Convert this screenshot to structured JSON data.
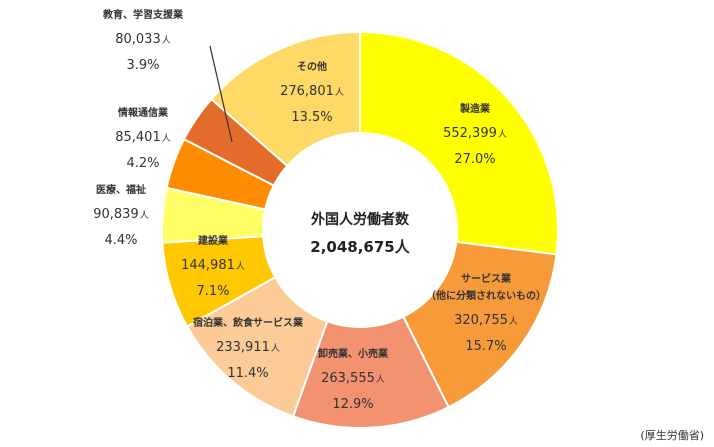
{
  "chart_data": {
    "type": "pie",
    "variant": "donut",
    "title": "",
    "center_title": "外国人労働者数",
    "center_total": "2,048,675人",
    "unit": "人",
    "segments": [
      {
        "name": "製造業",
        "name_line2": "",
        "value": 552399,
        "value_text": "552,399",
        "percent": "27.0%",
        "color": "#FFFF00"
      },
      {
        "name": "サービス業",
        "name_line2": "（他に分類されないもの）",
        "value": 320755,
        "value_text": "320,755",
        "percent": "15.7%",
        "color": "#F79A3A"
      },
      {
        "name": "卸売業、小売業",
        "name_line2": "",
        "value": 263555,
        "value_text": "263,555",
        "percent": "12.9%",
        "color": "#F39270"
      },
      {
        "name": "宿泊業、飲食サービス業",
        "name_line2": "",
        "value": 233911,
        "value_text": "233,911",
        "percent": "11.4%",
        "color": "#FCCB97"
      },
      {
        "name": "建設業",
        "name_line2": "",
        "value": 144981,
        "value_text": "144,981",
        "percent": "7.1%",
        "color": "#FFC800"
      },
      {
        "name": "医療、福祉",
        "name_line2": "",
        "value": 90839,
        "value_text": "90,839",
        "percent": "4.4%",
        "color": "#FFFF66"
      },
      {
        "name": "情報通信業",
        "name_line2": "",
        "value": 85401,
        "value_text": "85,401",
        "percent": "4.2%",
        "color": "#FF8C00"
      },
      {
        "name": "教育、学習支援業",
        "name_line2": "",
        "value": 80033,
        "value_text": "80,033",
        "percent": "3.9%",
        "color": "#E36C2A"
      },
      {
        "name": "その他",
        "name_line2": "",
        "value": 276801,
        "value_text": "276,801",
        "percent": "13.5%",
        "color": "#FFD966"
      }
    ],
    "legend": "none"
  },
  "source": "(厚生労働省)"
}
